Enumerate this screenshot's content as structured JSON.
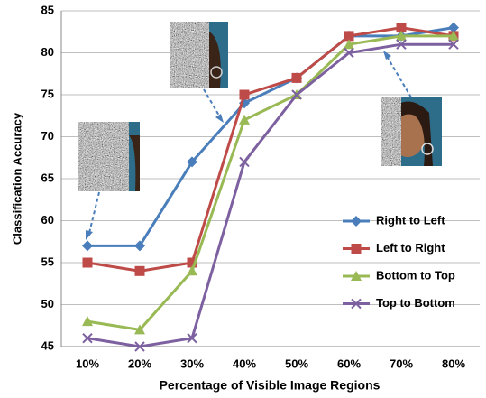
{
  "chart_data": {
    "type": "line",
    "x_label": "Percentage of Visible Image Regions",
    "y_label": "Classification Accuracy",
    "categories": [
      "10%",
      "20%",
      "30%",
      "40%",
      "50%",
      "60%",
      "70%",
      "80%"
    ],
    "series": [
      {
        "name": "Right to Left",
        "color": "#4a7ebb",
        "marker": "diamond",
        "values": [
          57,
          57,
          67,
          74,
          77,
          82,
          82,
          83
        ]
      },
      {
        "name": "Left to Right",
        "color": "#be4b48",
        "marker": "square",
        "values": [
          55,
          54,
          55,
          75,
          77,
          82,
          83,
          82
        ]
      },
      {
        "name": "Bottom to Top",
        "color": "#98b954",
        "marker": "triangle",
        "values": [
          48,
          47,
          54,
          72,
          75,
          81,
          82,
          82
        ]
      },
      {
        "name": "Top to Bottom",
        "color": "#7d60a0",
        "marker": "x",
        "values": [
          46,
          45,
          46,
          67,
          75,
          80,
          81,
          81
        ]
      }
    ],
    "ylim": [
      45,
      85
    ],
    "yticks": [
      45,
      50,
      55,
      60,
      65,
      70,
      75,
      80,
      85
    ],
    "grid": true
  }
}
